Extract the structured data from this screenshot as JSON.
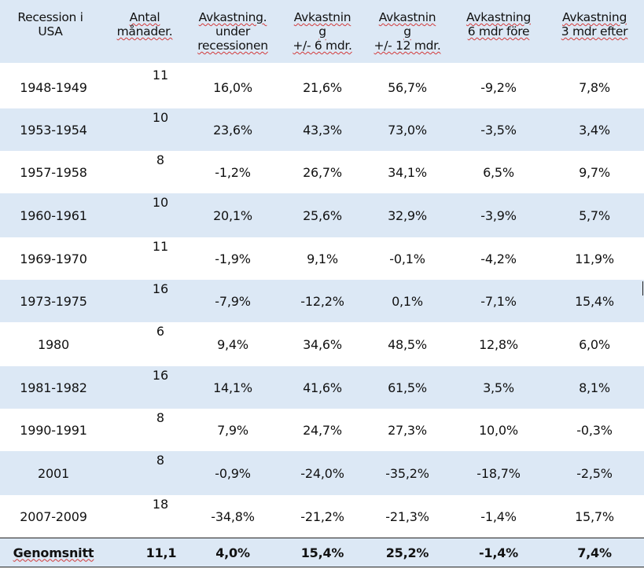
{
  "headers": {
    "col1": [
      "Recession i",
      "USA"
    ],
    "col2": [
      "Antal",
      "månader."
    ],
    "col3": [
      "Avkastning.",
      "under",
      "recessionen"
    ],
    "col4": [
      "Avkastnin",
      "g",
      "+/- 6 mdr."
    ],
    "col5": [
      "Avkastnin",
      "g",
      "+/- 12 mdr."
    ],
    "col6": [
      "Avkastning",
      "6 mdr före"
    ],
    "col7": [
      "Avkastning",
      "3 mdr efter"
    ]
  },
  "rows": [
    {
      "period": "1948-1949",
      "months": "11",
      "during": "16,0%",
      "pm6": "21,6%",
      "pm12": "56,7%",
      "before6": "-9,2%",
      "after3": "7,8%"
    },
    {
      "period": "1953-1954",
      "months": "10",
      "during": "23,6%",
      "pm6": "43,3%",
      "pm12": "73,0%",
      "before6": "-3,5%",
      "after3": "3,4%"
    },
    {
      "period": "1957-1958",
      "months": "8",
      "during": "-1,2%",
      "pm6": "26,7%",
      "pm12": "34,1%",
      "before6": "6,5%",
      "after3": "9,7%"
    },
    {
      "period": "1960-1961",
      "months": "10",
      "during": "20,1%",
      "pm6": "25,6%",
      "pm12": "32,9%",
      "before6": "-3,9%",
      "after3": "5,7%"
    },
    {
      "period": "1969-1970",
      "months": "11",
      "during": "-1,9%",
      "pm6": "9,1%",
      "pm12": "-0,1%",
      "before6": "-4,2%",
      "after3": "11,9%"
    },
    {
      "period": "1973-1975",
      "months": "16",
      "during": "-7,9%",
      "pm6": "-12,2%",
      "pm12": "0,1%",
      "before6": "-7,1%",
      "after3": "15,4%"
    },
    {
      "period": "1980",
      "months": "6",
      "during": "9,4%",
      "pm6": "34,6%",
      "pm12": "48,5%",
      "before6": "12,8%",
      "after3": "6,0%"
    },
    {
      "period": "1981-1982",
      "months": "16",
      "during": "14,1%",
      "pm6": "41,6%",
      "pm12": "61,5%",
      "before6": "3,5%",
      "after3": "8,1%"
    },
    {
      "period": "1990-1991",
      "months": "8",
      "during": "7,9%",
      "pm6": "24,7%",
      "pm12": "27,3%",
      "before6": "10,0%",
      "after3": "-0,3%"
    },
    {
      "period": "2001",
      "months": "8",
      "during": "-0,9%",
      "pm6": "-24,0%",
      "pm12": "-35,2%",
      "before6": "-18,7%",
      "after3": "-2,5%"
    },
    {
      "period": "2007-2009",
      "months": "18",
      "during": "-34,8%",
      "pm6": "-21,2%",
      "pm12": "-21,3%",
      "before6": "-1,4%",
      "after3": "15,7%"
    }
  ],
  "average": {
    "label": "Genomsnitt",
    "months": "11,1",
    "during": "4,0%",
    "pm6": "15,4%",
    "pm12": "25,2%",
    "before6": "-1,4%",
    "after3": "7,4%"
  }
}
